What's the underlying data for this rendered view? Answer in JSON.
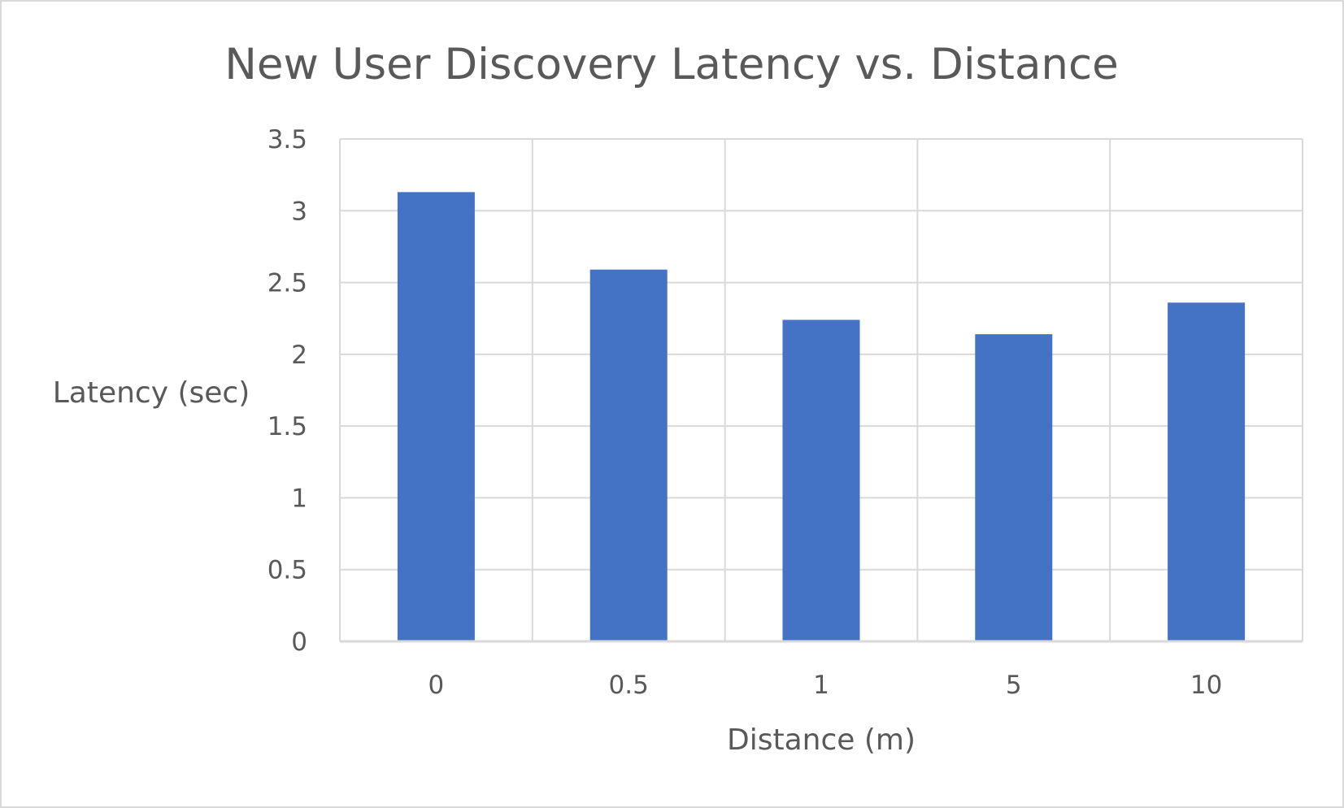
{
  "chart_data": {
    "type": "bar",
    "title": "New User Discovery Latency vs. Distance",
    "xlabel": "Distance (m)",
    "ylabel": "Latency (sec)",
    "categories": [
      "0",
      "0.5",
      "1",
      "5",
      "10"
    ],
    "values": [
      3.13,
      2.59,
      2.24,
      2.14,
      2.36
    ],
    "ylim": [
      0,
      3.5
    ],
    "yticks": [
      "0",
      "0.5",
      "1",
      "1.5",
      "2",
      "2.5",
      "3",
      "3.5"
    ],
    "grid": true,
    "legend": "none",
    "bar_color": "#4472c4",
    "grid_color": "#d9d9d9",
    "text_color": "#595959"
  }
}
